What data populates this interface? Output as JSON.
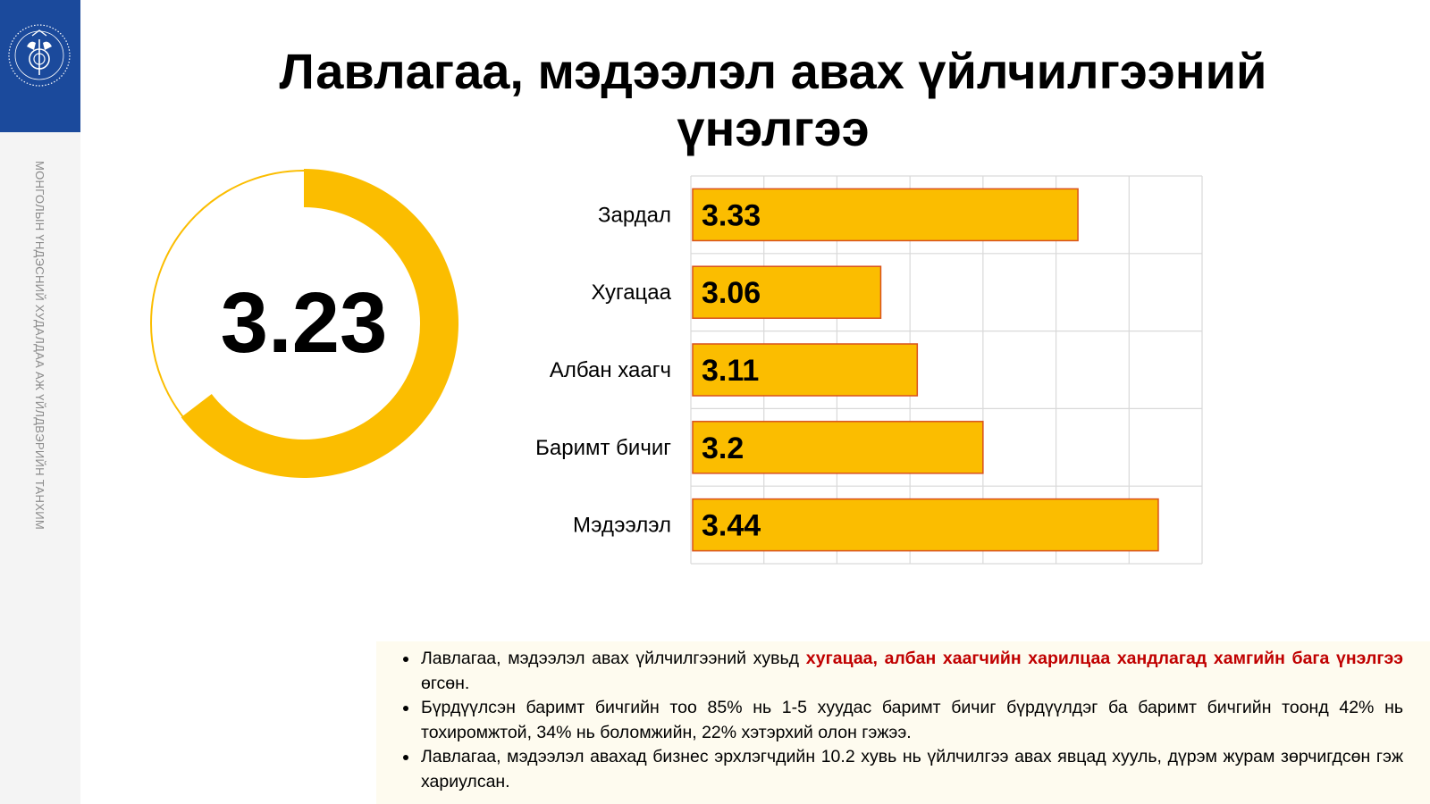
{
  "org": {
    "vertical_text": "МОНГОЛЫН ҮНДЭСНИЙ ХУДАЛДАА АЖ ҮЙЛДВЭРИЙН ТАНХИМ",
    "logo_icon": "chamber-emblem-icon",
    "colors": {
      "logo_bg": "#1b4a9c",
      "sidebar_bg": "#f4f4f4"
    }
  },
  "title": "Лавлагаа, мэдээлэл авах үйлчилгээний үнэлгээ",
  "notes": [
    {
      "parts": [
        {
          "text": "Лавлагаа, мэдээлэл авах үйлчилгээний хувьд ",
          "highlight": false
        },
        {
          "text": "хугацаа, албан хаагчийн харилцаа хандлагад хамгийн бага үнэлгээ",
          "highlight": true
        },
        {
          "text": " өгсөн.",
          "highlight": false
        }
      ]
    },
    {
      "parts": [
        {
          "text": "Бүрдүүлсэн баримт бичгийн тоо 85% нь 1-5 хуудас баримт бичиг бүрдүүлдэг ба баримт бичгийн тоонд 42% нь тохиромжтой, 34% нь боломжийн, 22% хэтэрхий олон гэжээ.",
          "highlight": false
        }
      ]
    },
    {
      "parts": [
        {
          "text": "Лавлагаа, мэдээлэл авахад бизнес эрхлэгчдийн 10.2 хувь нь үйлчилгээ авах явцад хууль, дүрэм журам зөрчигдсөн гэж хариулсан.",
          "highlight": false
        }
      ]
    }
  ],
  "chart_data": [
    {
      "type": "pie",
      "subtype": "donut",
      "center_label": "3.23",
      "value": 3.23,
      "max": 5,
      "colors": {
        "fill": "#fbbd00",
        "remainder_stroke": "#fbbd00",
        "remainder_fill": "#ffffff"
      }
    },
    {
      "type": "bar",
      "orientation": "horizontal",
      "categories": [
        "Зардал",
        "Хугацаа",
        "Албан хаагч",
        "Баримт бичиг",
        "Мэдээлэл"
      ],
      "values": [
        3.33,
        3.06,
        3.11,
        3.2,
        3.44
      ],
      "data_labels": [
        "3.33",
        "3.06",
        "3.11",
        "3.2",
        "3.44"
      ],
      "xlim": [
        2.8,
        3.5
      ],
      "grid": true,
      "colors": {
        "bar": "#fbbd00",
        "bar_border": "#d9511c",
        "grid": "#d9d9d9"
      }
    }
  ]
}
